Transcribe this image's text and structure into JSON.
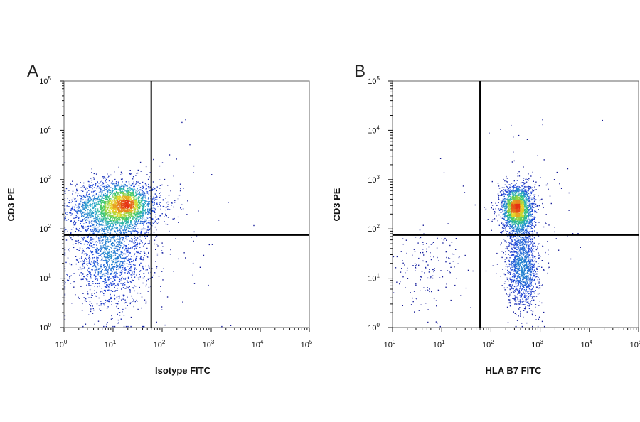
{
  "chart_data": [
    {
      "type": "scatter",
      "panel_label": "A",
      "xlabel": "Isotype FITC",
      "ylabel": "CD3 PE",
      "x_scale": "log",
      "y_scale": "log",
      "xlim": [
        1,
        100000
      ],
      "ylim": [
        1,
        100000
      ],
      "x_ticks": [
        "10^0",
        "10^1",
        "10^2",
        "10^3",
        "10^4",
        "10^5"
      ],
      "y_ticks": [
        "10^0",
        "10^1",
        "10^2",
        "10^3",
        "10^4",
        "10^5"
      ],
      "quadrant_gate": {
        "x": 60,
        "y": 75
      },
      "grid": false,
      "density_coloring": "pseudocolor (blue low, green, yellow, red high)",
      "populations": [
        {
          "name": "",
          "center": [
            12,
            280
          ],
          "spread_log": [
            0.45,
            0.28
          ],
          "count": 2300
        },
        {
          "name": "",
          "center": [
            9,
            25
          ],
          "spread_log": [
            0.4,
            0.5
          ],
          "count": 1500
        },
        {
          "name": "",
          "center": [
            18,
            310
          ],
          "spread_log": [
            0.18,
            0.12
          ],
          "count": 450
        },
        {
          "name": "",
          "center": [
            60,
            80
          ],
          "spread_log": [
            0.9,
            0.9
          ],
          "count": 120
        }
      ]
    },
    {
      "type": "scatter",
      "panel_label": "B",
      "xlabel": "HLA B7 FITC",
      "ylabel": "CD3 PE",
      "x_scale": "log",
      "y_scale": "log",
      "xlim": [
        1,
        100000
      ],
      "ylim": [
        1,
        100000
      ],
      "x_ticks": [
        "10^0",
        "10^1",
        "10^2",
        "10^3",
        "10^4",
        "10^5"
      ],
      "y_ticks": [
        "10^0",
        "10^1",
        "10^2",
        "10^3",
        "10^4",
        "10^5"
      ],
      "quadrant_gate": {
        "x": 60,
        "y": 75
      },
      "grid": false,
      "density_coloring": "pseudocolor (blue low, green, yellow, red high)",
      "populations": [
        {
          "name": "",
          "center": [
            350,
            250
          ],
          "spread_log": [
            0.16,
            0.26
          ],
          "count": 1800
        },
        {
          "name": "",
          "center": [
            450,
            18
          ],
          "spread_log": [
            0.16,
            0.45
          ],
          "count": 1300
        },
        {
          "name": "",
          "center": [
            320,
            280
          ],
          "spread_log": [
            0.08,
            0.1
          ],
          "count": 350
        },
        {
          "name": "",
          "center": [
            5,
            15
          ],
          "spread_log": [
            0.35,
            0.45
          ],
          "count": 160
        },
        {
          "name": "",
          "center": [
            400,
            300
          ],
          "spread_log": [
            0.6,
            0.7
          ],
          "count": 120
        }
      ]
    }
  ]
}
